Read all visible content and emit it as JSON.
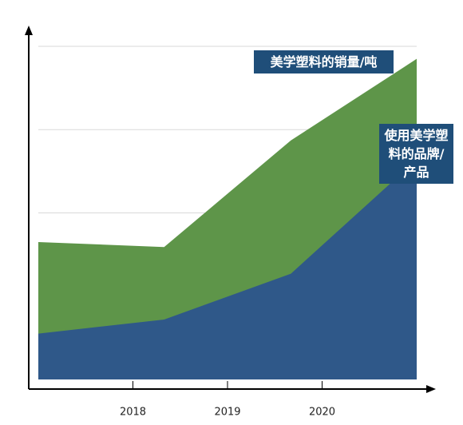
{
  "chart_data": {
    "type": "area",
    "x": [
      2017,
      2018.33,
      2019.67,
      2021
    ],
    "xlim": [
      2017,
      2021
    ],
    "xticks": [
      2018,
      2019,
      2020
    ],
    "ylim": [
      0,
      4
    ],
    "yticks": [
      1,
      2,
      3,
      4
    ],
    "grid": true,
    "series": [
      {
        "name": "美学塑料的销量/吨",
        "color": "#5e9549",
        "values": [
          1.65,
          1.59,
          2.87,
          3.85
        ]
      },
      {
        "name": "使用美学塑料的品牌/产品",
        "color": "#2f5889",
        "values": [
          0.55,
          0.72,
          1.27,
          2.64
        ]
      }
    ]
  }
}
